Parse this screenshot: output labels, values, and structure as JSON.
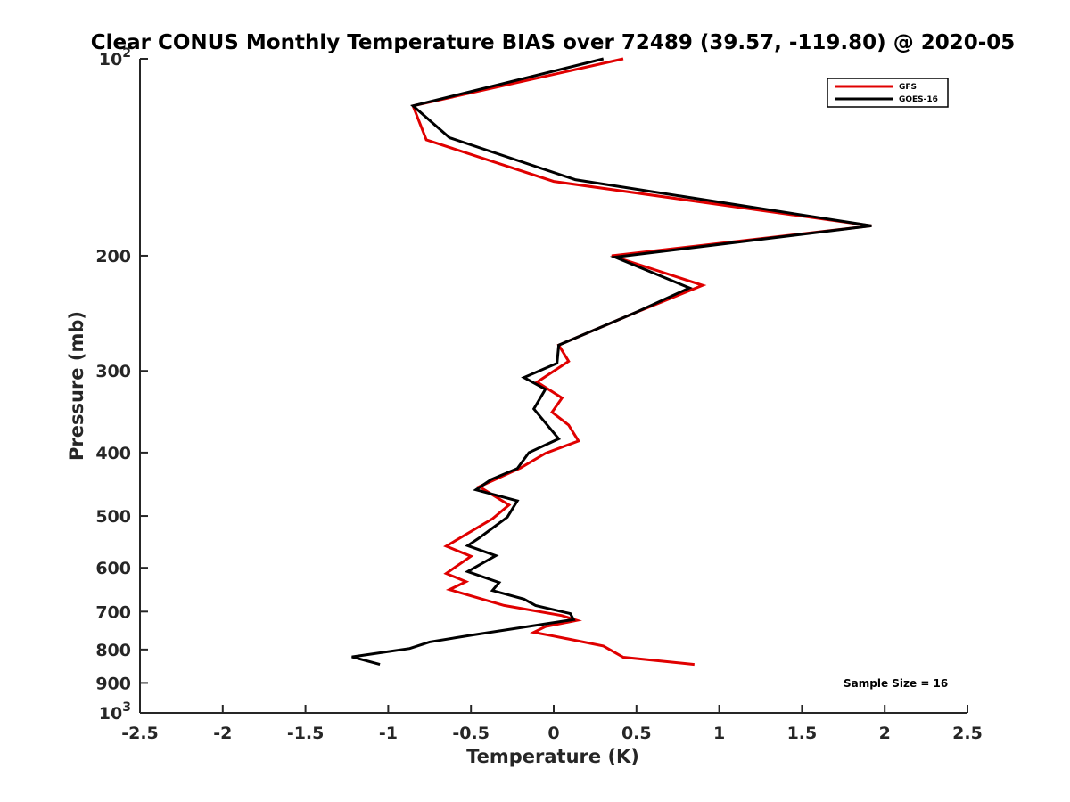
{
  "chart_data": {
    "type": "line",
    "title": "Clear CONUS Monthly Temperature BIAS over 72489 (39.57, -119.80) @ 2020-05",
    "xlabel": "Temperature (K)",
    "ylabel": "Pressure (mb)",
    "xlim": [
      -2.5,
      2.5
    ],
    "ylim": [
      100,
      1000
    ],
    "yscale": "log",
    "y_reversed": true,
    "grid": false,
    "x_ticks": [
      -2.5,
      -2,
      -1.5,
      -1,
      -0.5,
      0,
      0.5,
      1,
      1.5,
      2,
      2.5
    ],
    "x_tick_labels": [
      "-2.5",
      "-2",
      "-1.5",
      "-1",
      "-0.5",
      "0",
      "0.5",
      "1",
      "1.5",
      "2",
      "2.5"
    ],
    "y_ticks": [
      100,
      200,
      300,
      400,
      500,
      600,
      700,
      800,
      900,
      1000
    ],
    "y_tick_labels": [
      {
        "base": "10",
        "exp": "2"
      },
      {
        "base": "200",
        "exp": ""
      },
      {
        "base": "300",
        "exp": ""
      },
      {
        "base": "400",
        "exp": ""
      },
      {
        "base": "500",
        "exp": ""
      },
      {
        "base": "600",
        "exp": ""
      },
      {
        "base": "700",
        "exp": ""
      },
      {
        "base": "800",
        "exp": ""
      },
      {
        "base": "900",
        "exp": ""
      },
      {
        "base": "10",
        "exp": "3"
      }
    ],
    "legend_position": "top-right",
    "annotation": "Sample Size = 16",
    "series": [
      {
        "name": "GFS",
        "color": "#e00000",
        "points": [
          [
            0.42,
            100
          ],
          [
            -0.85,
            118
          ],
          [
            -0.77,
            133
          ],
          [
            0.0,
            154
          ],
          [
            1.92,
            180
          ],
          [
            0.35,
            200
          ],
          [
            0.9,
            222
          ],
          [
            0.5,
            244
          ],
          [
            0.03,
            274
          ],
          [
            0.09,
            290
          ],
          [
            -0.1,
            312
          ],
          [
            0.05,
            330
          ],
          [
            -0.01,
            347
          ],
          [
            0.09,
            363
          ],
          [
            0.15,
            384
          ],
          [
            -0.05,
            401
          ],
          [
            -0.2,
            422
          ],
          [
            -0.45,
            451
          ],
          [
            -0.27,
            481
          ],
          [
            -0.37,
            505
          ],
          [
            -0.65,
            556
          ],
          [
            -0.5,
            576
          ],
          [
            -0.65,
            612
          ],
          [
            -0.53,
            630
          ],
          [
            -0.63,
            648
          ],
          [
            -0.3,
            685
          ],
          [
            0.05,
            710
          ],
          [
            0.14,
            722
          ],
          [
            -0.05,
            738
          ],
          [
            -0.12,
            753
          ],
          [
            0.0,
            763
          ],
          [
            0.3,
            790
          ],
          [
            0.42,
            822
          ],
          [
            0.85,
            843
          ]
        ]
      },
      {
        "name": "GOES-16",
        "color": "#000000",
        "points": [
          [
            0.3,
            100
          ],
          [
            -0.85,
            118
          ],
          [
            -0.63,
            132
          ],
          [
            0.13,
            153
          ],
          [
            1.92,
            180
          ],
          [
            0.37,
            201
          ],
          [
            0.82,
            224
          ],
          [
            0.5,
            244
          ],
          [
            0.03,
            274
          ],
          [
            0.02,
            292
          ],
          [
            -0.18,
            307
          ],
          [
            -0.05,
            320
          ],
          [
            -0.12,
            343
          ],
          [
            0.03,
            381
          ],
          [
            -0.15,
            400
          ],
          [
            -0.22,
            423
          ],
          [
            -0.38,
            440
          ],
          [
            -0.47,
            456
          ],
          [
            -0.22,
            474
          ],
          [
            -0.28,
            502
          ],
          [
            -0.45,
            540
          ],
          [
            -0.52,
            555
          ],
          [
            -0.35,
            575
          ],
          [
            -0.52,
            608
          ],
          [
            -0.33,
            632
          ],
          [
            -0.37,
            650
          ],
          [
            -0.18,
            670
          ],
          [
            -0.11,
            685
          ],
          [
            0.1,
            705
          ],
          [
            0.12,
            720
          ],
          [
            -0.5,
            761
          ],
          [
            -0.75,
            779
          ],
          [
            -0.87,
            797
          ],
          [
            -1.22,
            821
          ],
          [
            -1.05,
            843
          ]
        ]
      }
    ]
  }
}
